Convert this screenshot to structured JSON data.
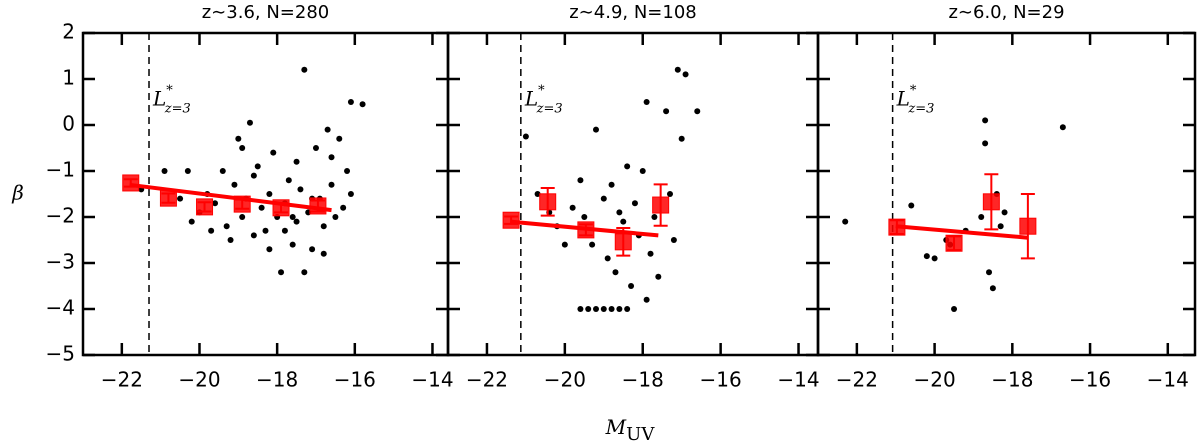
{
  "chart_data": [
    {
      "type": "scatter",
      "title": "z∼3.6, N=280",
      "ylabel": "β",
      "xlim": [
        -23,
        -13.6
      ],
      "ylim": [
        -5,
        2
      ],
      "xticks": [
        {
          "value": -22,
          "label": "−22"
        },
        {
          "value": -20,
          "label": "−20"
        },
        {
          "value": -18,
          "label": "−18"
        },
        {
          "value": -16,
          "label": "−16"
        },
        {
          "value": -14,
          "label": "−14"
        }
      ],
      "yticks": [
        {
          "value": -5,
          "label": "−5"
        },
        {
          "value": -4,
          "label": "−4"
        },
        {
          "value": -3,
          "label": "−3"
        },
        {
          "value": -2,
          "label": "−2"
        },
        {
          "value": -1,
          "label": "−1"
        },
        0,
        1,
        2
      ],
      "show_ytick_labels": true,
      "lstar_x": -21.3,
      "annotation": {
        "text": "L",
        "sup": "*",
        "sub": "z=3"
      },
      "points": {
        "color": "#000000",
        "x": [
          -21.5,
          -20.9,
          -20.5,
          -20.2,
          -20.0,
          -19.8,
          -19.6,
          -19.4,
          -19.3,
          -19.1,
          -19.0,
          -18.9,
          -18.8,
          -18.7,
          -18.6,
          -18.5,
          -18.4,
          -18.3,
          -18.2,
          -18.1,
          -18.0,
          -17.9,
          -17.8,
          -17.7,
          -17.6,
          -17.5,
          -17.4,
          -17.3,
          -17.2,
          -17.1,
          -17.0,
          -16.9,
          -16.8,
          -16.7,
          -16.6,
          -16.5,
          -16.4,
          -16.3,
          -16.2,
          -16.1,
          -17.3,
          -16.1,
          -15.8,
          -19.2,
          -18.6,
          -17.8,
          -17.5,
          -17.1,
          -16.8,
          -18.2,
          -19.7,
          -20.3,
          -18.9,
          -17.6,
          -16.6
        ],
        "y": [
          -1.4,
          -1.0,
          -1.6,
          -2.1,
          -1.9,
          -1.5,
          -1.7,
          -1.0,
          -2.2,
          -1.3,
          -0.3,
          -2.0,
          -1.6,
          0.05,
          -2.4,
          -0.9,
          -1.8,
          -2.3,
          -1.5,
          -0.6,
          -2.0,
          -3.2,
          -1.7,
          -1.2,
          -2.6,
          -2.1,
          -1.4,
          -3.2,
          -1.9,
          -2.7,
          -0.5,
          -1.6,
          -2.2,
          -0.1,
          -1.3,
          -2.0,
          -0.3,
          -1.8,
          -1.0,
          0.5,
          1.2,
          -1.5,
          0.45,
          -2.5,
          -1.1,
          -2.3,
          -0.8,
          -1.6,
          -2.8,
          -2.7,
          -2.3,
          -1.0,
          -0.5,
          -2.0,
          -0.7
        ]
      },
      "binned": {
        "color": "#ff0000",
        "x": [
          -21.77,
          -20.8,
          -19.87,
          -18.9,
          -17.9,
          -16.95
        ],
        "y": [
          -1.26,
          -1.59,
          -1.78,
          -1.72,
          -1.8,
          -1.76
        ],
        "err": [
          0.08,
          0.1,
          0.1,
          0.1,
          0.1,
          0.12
        ]
      },
      "fit": {
        "color": "#ff0000",
        "x": [
          -21.8,
          -16.6
        ],
        "y": [
          -1.3,
          -1.85
        ]
      }
    },
    {
      "type": "scatter",
      "title": "z∼4.9, N=108",
      "xlabel": "M",
      "xlabel_sub": "UV",
      "xlim": [
        -23,
        -13.5
      ],
      "ylim": [
        -5,
        2
      ],
      "xticks": [
        {
          "value": -22,
          "label": "−22"
        },
        {
          "value": -20,
          "label": "−20"
        },
        {
          "value": -18,
          "label": "−18"
        },
        {
          "value": -16,
          "label": "−16"
        },
        {
          "value": -14,
          "label": "−14"
        }
      ],
      "yticks": [
        -5,
        -4,
        -3,
        -2,
        -1,
        0,
        1,
        2
      ],
      "show_ytick_labels": false,
      "lstar_x": -21.13,
      "annotation": {
        "text": "L",
        "sup": "*",
        "sub": "z=3"
      },
      "points": {
        "color": "#000000",
        "x": [
          -21.0,
          -20.7,
          -20.4,
          -20.2,
          -20.0,
          -19.8,
          -19.6,
          -19.5,
          -19.3,
          -19.2,
          -19.0,
          -18.9,
          -18.8,
          -18.7,
          -18.5,
          -18.4,
          -18.3,
          -18.2,
          -18.1,
          -18.0,
          -17.9,
          -17.8,
          -17.7,
          -17.6,
          -17.4,
          -17.3,
          -17.2,
          -17.1,
          -17.0,
          -16.9,
          -16.6,
          -19.6,
          -19.4,
          -19.2,
          -19.0,
          -18.8,
          -18.6,
          -18.4,
          -17.9,
          -18.6
        ],
        "y": [
          -0.25,
          -1.5,
          -1.9,
          -2.2,
          -2.6,
          -1.8,
          -1.2,
          -2.0,
          -2.6,
          -0.1,
          -1.6,
          -2.9,
          -1.3,
          -3.2,
          -2.1,
          -0.9,
          -3.5,
          -1.7,
          -2.4,
          -1.0,
          0.5,
          -2.8,
          -2.0,
          -3.3,
          0.3,
          -1.5,
          -2.5,
          1.2,
          -0.3,
          1.1,
          0.3,
          -4.0,
          -4.0,
          -4.0,
          -4.0,
          -4.0,
          -4.0,
          -4.0,
          -3.8,
          -1.9
        ]
      },
      "binned": {
        "color": "#ff0000",
        "x": [
          -21.38,
          -20.44,
          -19.46,
          -18.5,
          -17.54
        ],
        "y": [
          -2.07,
          -1.67,
          -2.28,
          -2.54,
          -1.74
        ],
        "err": [
          0.08,
          0.3,
          0.12,
          0.3,
          0.45
        ]
      },
      "fit": {
        "color": "#ff0000",
        "x": [
          -21.4,
          -17.6
        ],
        "y": [
          -2.1,
          -2.4
        ]
      }
    },
    {
      "type": "scatter",
      "title": "z∼6.0, N=29",
      "xlim": [
        -23,
        -13.3
      ],
      "ylim": [
        -5,
        2
      ],
      "xticks": [
        {
          "value": -22,
          "label": "−22"
        },
        {
          "value": -20,
          "label": "−20"
        },
        {
          "value": -18,
          "label": "−18"
        },
        {
          "value": -16,
          "label": "−16"
        },
        {
          "value": -14,
          "label": "−14"
        }
      ],
      "yticks": [
        -5,
        -4,
        -3,
        -2,
        -1,
        0,
        1,
        2
      ],
      "show_ytick_labels": false,
      "lstar_x": -21.08,
      "annotation": {
        "text": "L",
        "sup": "*",
        "sub": "z=3"
      },
      "points": {
        "color": "#000000",
        "x": [
          -22.3,
          -20.6,
          -20.2,
          -20.0,
          -19.7,
          -19.6,
          -19.5,
          -19.2,
          -18.7,
          -18.7,
          -18.6,
          -18.5,
          -18.3,
          -18.2,
          -16.7,
          -18.4,
          -18.8
        ],
        "y": [
          -2.1,
          -1.75,
          -2.85,
          -2.9,
          -2.5,
          -2.6,
          -4.0,
          -2.3,
          0.1,
          -0.4,
          -3.2,
          -3.55,
          -2.2,
          -1.9,
          -0.05,
          -1.5,
          -2.0
        ]
      },
      "binned": {
        "color": "#ff0000",
        "x": [
          -20.97,
          -19.5,
          -18.54,
          -17.6
        ],
        "y": [
          -2.22,
          -2.57,
          -1.67,
          -2.2
        ],
        "err": [
          0.15,
          0.15,
          0.6,
          0.7
        ]
      },
      "fit": {
        "color": "#ff0000",
        "x": [
          -21.0,
          -17.6
        ],
        "y": [
          -2.2,
          -2.45
        ]
      }
    }
  ]
}
